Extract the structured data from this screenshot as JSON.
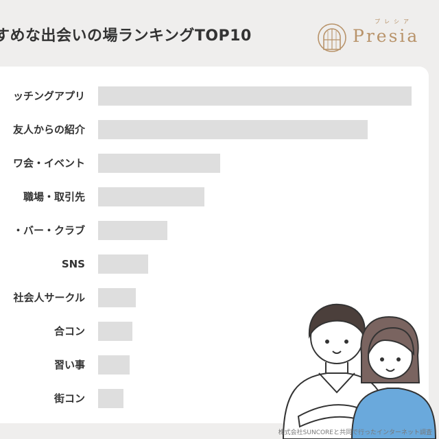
{
  "header": {
    "title": "すめな出会いの場ランキングTOP10",
    "brand_name": "Presia",
    "brand_ruby": "プレシア"
  },
  "chart_data": {
    "type": "bar",
    "orientation": "horizontal",
    "title": "すめな出会いの場ランキングTOP10",
    "categories": [
      "ッチングアプリ",
      "友人からの紹介",
      "ワ会・イベント",
      "職場・取引先",
      "・バー・クラブ",
      "SNS",
      "社会人サークル",
      "合コン",
      "習い事",
      "街コン"
    ],
    "values": [
      100,
      86,
      39,
      34,
      22,
      16,
      12,
      11,
      10,
      8
    ],
    "xlim": [
      0,
      100
    ],
    "grid": false,
    "bar_color": "#dedede"
  },
  "footer": {
    "credit": "株式会社SUNCOREと共同で行ったインターネット調査"
  },
  "colors": {
    "background": "#efeeed",
    "card": "#ffffff",
    "bar": "#dedede",
    "brand": "#b8936a",
    "text": "#333333",
    "shirt_blue": "#6aa9dc"
  },
  "illustration": "couple-illustration"
}
